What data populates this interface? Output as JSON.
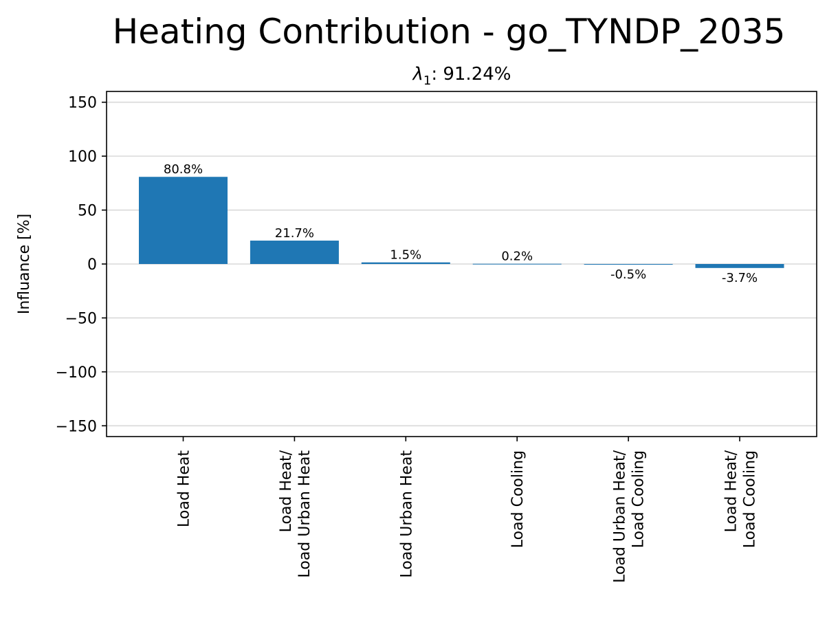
{
  "chart_data": {
    "type": "bar",
    "title": "Heating Contribution - go_TYNDP_2035",
    "subtitle_symbol": "λ",
    "subtitle_subscript": "1",
    "subtitle_value": ": 91.24%",
    "xlabel": "",
    "ylabel": "Influance [%]",
    "ylim": [
      -160,
      160
    ],
    "yticks": [
      150,
      100,
      50,
      0,
      -50,
      -100,
      -150
    ],
    "ytick_labels": [
      "150",
      "100",
      "50",
      "0",
      "−50",
      "−100",
      "−150"
    ],
    "categories": [
      [
        "Load Heat"
      ],
      [
        "Load Heat/",
        "Load Urban Heat"
      ],
      [
        "Load Urban Heat"
      ],
      [
        "Load Cooling"
      ],
      [
        "Load Urban Heat/",
        "Load Cooling"
      ],
      [
        "Load Heat/",
        "Load Cooling"
      ]
    ],
    "values": [
      80.8,
      21.7,
      1.5,
      0.2,
      -0.5,
      -3.7
    ],
    "value_labels": [
      "80.8%",
      "21.7%",
      "1.5%",
      "0.2%",
      "-0.5%",
      "-3.7%"
    ],
    "grid": "horizontal",
    "bar_color": "#1f77b4",
    "grid_color": "#d9d9d9"
  }
}
